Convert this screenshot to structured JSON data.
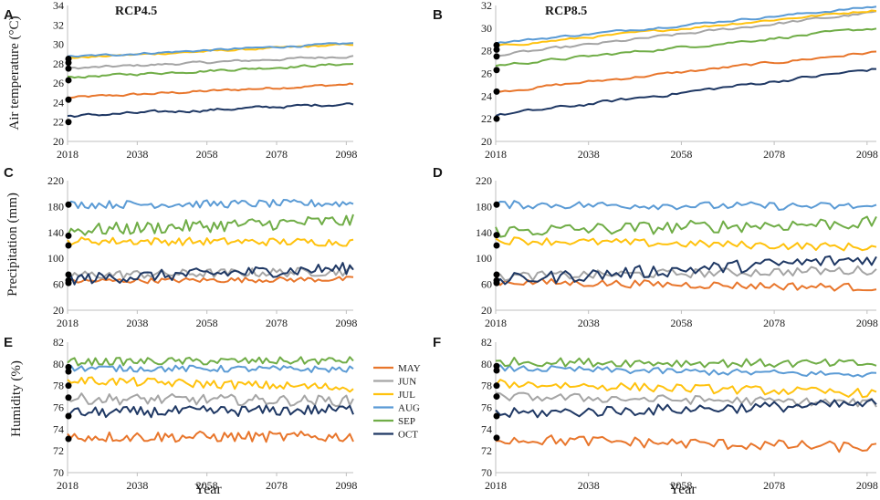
{
  "chart_data": {
    "type": "line",
    "x_start": 2018,
    "x_end": 2100,
    "x_ticks": [
      2018,
      2038,
      2058,
      2078,
      2098
    ],
    "xlabel": "Year",
    "month_colors": {
      "MAY": "#e8762c",
      "JUN": "#a5a5a5",
      "JUL": "#ffc20e",
      "AUG": "#5b9bd5",
      "SEP": "#70ad47",
      "OCT": "#1f3864"
    },
    "legend": [
      "MAY",
      "JUN",
      "JUL",
      "AUG",
      "SEP",
      "OCT"
    ],
    "panels": [
      {
        "label": "A",
        "title": "RCP4.5",
        "ylabel": "Air temperature (°C)",
        "ylim": [
          20,
          34
        ],
        "yticks": [
          20,
          22,
          24,
          26,
          28,
          30,
          32,
          34
        ],
        "style": "smooth",
        "marker_y": [
          22.0,
          24.3,
          26.3,
          27.5,
          28.1,
          28.5
        ],
        "series": [
          {
            "name": "MAY",
            "y0": 24.5,
            "y1": 25.9,
            "noise": 0.1
          },
          {
            "name": "JUN",
            "y0": 27.5,
            "y1": 28.8,
            "noise": 0.1
          },
          {
            "name": "JUL",
            "y0": 28.6,
            "y1": 30.0,
            "noise": 0.08
          },
          {
            "name": "AUG",
            "y0": 28.7,
            "y1": 30.1,
            "noise": 0.08
          },
          {
            "name": "SEP",
            "y0": 26.6,
            "y1": 28.0,
            "noise": 0.1
          },
          {
            "name": "OCT",
            "y0": 22.6,
            "y1": 23.9,
            "noise": 0.12
          }
        ]
      },
      {
        "label": "B",
        "title": "RCP8.5",
        "ylabel": "",
        "ylim": [
          20,
          32
        ],
        "yticks": [
          20,
          22,
          24,
          26,
          28,
          30,
          32
        ],
        "style": "smooth",
        "marker_y": [
          22.0,
          24.4,
          26.3,
          27.5,
          28.1,
          28.5
        ],
        "series": [
          {
            "name": "MAY",
            "y0": 24.4,
            "y1": 27.9,
            "noise": 0.1
          },
          {
            "name": "JUN",
            "y0": 27.6,
            "y1": 31.4,
            "noise": 0.1
          },
          {
            "name": "JUL",
            "y0": 28.4,
            "y1": 31.6,
            "noise": 0.08
          },
          {
            "name": "AUG",
            "y0": 28.7,
            "y1": 31.9,
            "noise": 0.08
          },
          {
            "name": "SEP",
            "y0": 26.7,
            "y1": 30.0,
            "noise": 0.1
          },
          {
            "name": "OCT",
            "y0": 22.3,
            "y1": 26.4,
            "noise": 0.12
          }
        ]
      },
      {
        "label": "C",
        "title": "",
        "ylabel": "Precipitation (mm)",
        "ylim": [
          20,
          220
        ],
        "yticks": [
          20,
          60,
          100,
          140,
          180,
          220
        ],
        "style": "noisy",
        "marker_y": [
          62,
          66,
          75,
          120,
          135,
          183
        ],
        "series": [
          {
            "name": "MAY",
            "y0": 65,
            "y1": 68,
            "noise": 4
          },
          {
            "name": "JUN",
            "y0": 74,
            "y1": 80,
            "noise": 7
          },
          {
            "name": "JUL",
            "y0": 127,
            "y1": 125,
            "noise": 6
          },
          {
            "name": "AUG",
            "y0": 183,
            "y1": 185,
            "noise": 6
          },
          {
            "name": "SEP",
            "y0": 143,
            "y1": 158,
            "noise": 10
          },
          {
            "name": "OCT",
            "y0": 68,
            "y1": 85,
            "noise": 9
          }
        ]
      },
      {
        "label": "D",
        "title": "",
        "ylabel": "",
        "ylim": [
          20,
          220
        ],
        "yticks": [
          20,
          60,
          100,
          140,
          180,
          220
        ],
        "style": "noisy",
        "marker_y": [
          62,
          66,
          75,
          120,
          136,
          183
        ],
        "series": [
          {
            "name": "MAY",
            "y0": 64,
            "y1": 55,
            "noise": 6
          },
          {
            "name": "JUN",
            "y0": 72,
            "y1": 82,
            "noise": 7
          },
          {
            "name": "JUL",
            "y0": 128,
            "y1": 117,
            "noise": 6
          },
          {
            "name": "AUG",
            "y0": 183,
            "y1": 180,
            "noise": 6
          },
          {
            "name": "SEP",
            "y0": 142,
            "y1": 155,
            "noise": 10
          },
          {
            "name": "OCT",
            "y0": 66,
            "y1": 100,
            "noise": 10
          }
        ]
      },
      {
        "label": "E",
        "title": "",
        "ylabel": "Humidity (%)",
        "ylim": [
          70,
          82
        ],
        "yticks": [
          70,
          72,
          74,
          76,
          78,
          80,
          82
        ],
        "style": "noisy",
        "marker_y": [
          73.1,
          75.2,
          76.9,
          78.0,
          79.3,
          79.7
        ],
        "series": [
          {
            "name": "MAY",
            "y0": 73.3,
            "y1": 73.3,
            "noise": 0.5
          },
          {
            "name": "JUN",
            "y0": 76.8,
            "y1": 76.6,
            "noise": 0.5
          },
          {
            "name": "JUL",
            "y0": 78.5,
            "y1": 77.8,
            "noise": 0.4
          },
          {
            "name": "AUG",
            "y0": 79.6,
            "y1": 79.5,
            "noise": 0.3
          },
          {
            "name": "SEP",
            "y0": 80.2,
            "y1": 80.3,
            "noise": 0.35
          },
          {
            "name": "OCT",
            "y0": 75.5,
            "y1": 75.8,
            "noise": 0.5
          }
        ]
      },
      {
        "label": "F",
        "title": "",
        "ylabel": "",
        "ylim": [
          70,
          82
        ],
        "yticks": [
          70,
          72,
          74,
          76,
          78,
          80,
          82
        ],
        "style": "noisy",
        "marker_y": [
          73.2,
          75.2,
          77.0,
          78.0,
          79.4,
          79.8
        ],
        "series": [
          {
            "name": "MAY",
            "y0": 73.1,
            "y1": 72.3,
            "noise": 0.5
          },
          {
            "name": "JUN",
            "y0": 77.0,
            "y1": 76.4,
            "noise": 0.4
          },
          {
            "name": "JUL",
            "y0": 78.2,
            "y1": 77.3,
            "noise": 0.4
          },
          {
            "name": "AUG",
            "y0": 79.6,
            "y1": 79.0,
            "noise": 0.3
          },
          {
            "name": "SEP",
            "y0": 80.2,
            "y1": 80.0,
            "noise": 0.4
          },
          {
            "name": "OCT",
            "y0": 75.4,
            "y1": 76.3,
            "noise": 0.5
          }
        ]
      }
    ]
  }
}
